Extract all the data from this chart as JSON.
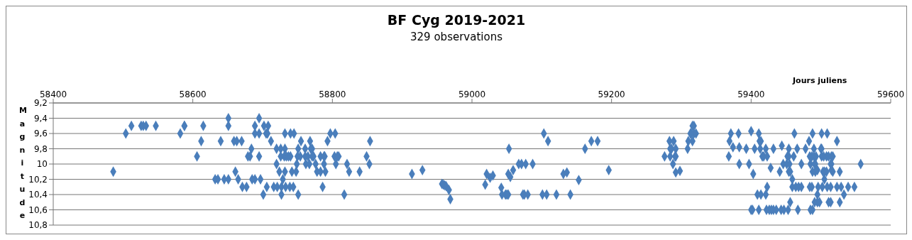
{
  "chart_data": {
    "type": "scatter",
    "title": "BF Cyg 2019-2021",
    "subtitle": "329 observations",
    "xlabel": "Jours juliens",
    "ylabel": "Magnitude",
    "xlim": [
      58400,
      59600
    ],
    "xticks": [
      58400,
      58600,
      58800,
      59000,
      59200,
      59400,
      59600
    ],
    "ylim": [
      10.8,
      9.2
    ],
    "yticks": [
      {
        "value": 9.2,
        "label": "9,2"
      },
      {
        "value": 9.4,
        "label": "9,4"
      },
      {
        "value": 9.6,
        "label": "9,6"
      },
      {
        "value": 9.8,
        "label": "9,8"
      },
      10,
      {
        "value": 10.2,
        "label": "10,2"
      },
      {
        "value": 10.4,
        "label": "10,4"
      },
      {
        "value": 10.6,
        "label": "10,6"
      },
      {
        "value": 10.8,
        "label": "10,8"
      }
    ],
    "grid": "y",
    "marker": "diamond",
    "legend": false,
    "series": [
      {
        "color": "#4a7ebb",
        "x": [
          58486,
          58504,
          58512,
          58526,
          58529,
          58533,
          58547,
          58582,
          58588,
          58588,
          58606,
          58612,
          58615,
          58632,
          58636,
          58640,
          58645,
          58651,
          58651,
          58651,
          58659,
          58663,
          58670,
          58661,
          58665,
          58671,
          58677,
          58684,
          58679,
          58682,
          58685,
          58689,
          58689,
          58689,
          58695,
          58695,
          58695,
          58697,
          58702,
          58708,
          58705,
          58707,
          58732,
          58740,
          58745,
          58797,
          58804,
          58712,
          58755,
          58768,
          58793,
          58854,
          58720,
          58726,
          58732,
          58751,
          58761,
          58769,
          58771,
          58726,
          58731,
          58734,
          58737,
          58740,
          58750,
          58754,
          58761,
          58765,
          58771,
          58773,
          58783,
          58788,
          58789,
          58803,
          58807,
          58809,
          58849,
          58720,
          58749,
          58762,
          58767,
          58776,
          58788,
          58805,
          58821,
          58853,
          58724,
          58732,
          58742,
          58748,
          58778,
          58783,
          58790,
          58824,
          58839,
          58729,
          58706,
          58716,
          58721,
          58727,
          58733,
          58739,
          58744,
          58786,
          58701,
          58727,
          58751,
          58817,
          58914,
          58929,
          58957,
          58959,
          58961,
          58963,
          58967,
          58969,
          59019,
          59021,
          59026,
          59030,
          59042,
          59043,
          59048,
          59050,
          59052,
          59052,
          59055,
          59059,
          59053,
          59067,
          59071,
          59077,
          59087,
          59073,
          59075,
          59080,
          59101,
          59107,
          59121,
          59141,
          59103,
          59109,
          59131,
          59136,
          59153,
          59162,
          59171,
          59180,
          59196,
          59316,
          59318,
          59313,
          59314,
          59318,
          59321,
          59371,
          59382,
          59283,
          59289,
          59310,
          59316,
          59369,
          59374,
          59383,
          59284,
          59286,
          59292,
          59309,
          59393,
          59276,
          59284,
          59291,
          59292,
          59368,
          59288,
          59383,
          59292,
          59298,
          59400,
          59411,
          59462,
          59488,
          59501,
          59509,
          59412,
          59414,
          59483,
          59523,
          59444,
          59405,
          59413,
          59421,
          59432,
          59454,
          59466,
          59478,
          59490,
          59500,
          59501,
          59416,
          59418,
          59423,
          59452,
          59454,
          59461,
          59484,
          59487,
          59490,
          59493,
          59501,
          59504,
          59508,
          59511,
          59515,
          59517,
          59397,
          59446,
          59451,
          59455,
          59472,
          59485,
          59491,
          59492,
          59514,
          59515,
          59557,
          59428,
          59403,
          59441,
          59454,
          59456,
          59488,
          59492,
          59503,
          59505,
          59508,
          59517,
          59527,
          59495,
          59515,
          59459,
          59505,
          59423,
          59459,
          59464,
          59468,
          59472,
          59484,
          59487,
          59496,
          59502,
          59509,
          59514,
          59523,
          59529,
          59539,
          59548,
          59409,
          59414,
          59421,
          59495,
          59533,
          59456,
          59491,
          59495,
          59498,
          59511,
          59514,
          59527,
          59400,
          59402,
          59411,
          59422,
          59426,
          59429,
          59432,
          59436,
          59443,
          59447,
          59453,
          59467,
          59485,
          59488
        ],
        "values": [
          10.1,
          9.6,
          9.5,
          9.5,
          9.5,
          9.5,
          9.5,
          9.6,
          9.5,
          9.5,
          9.9,
          9.7,
          9.5,
          10.2,
          10.2,
          9.7,
          10.2,
          10.2,
          9.4,
          9.5,
          9.7,
          9.7,
          9.7,
          10.1,
          10.2,
          10.3,
          10.3,
          9.8,
          9.9,
          9.9,
          10.2,
          10.2,
          9.5,
          9.6,
          9.4,
          9.9,
          9.6,
          10.2,
          9.5,
          9.5,
          9.6,
          9.6,
          9.6,
          9.6,
          9.6,
          9.6,
          9.6,
          9.7,
          9.7,
          9.7,
          9.7,
          9.7,
          9.8,
          9.8,
          9.8,
          9.8,
          9.8,
          9.8,
          9.8,
          9.9,
          9.9,
          9.9,
          9.9,
          9.9,
          9.9,
          9.9,
          9.9,
          9.9,
          9.9,
          9.9,
          9.9,
          9.9,
          9.9,
          9.9,
          9.9,
          9.9,
          9.9,
          10,
          10,
          10,
          10,
          10,
          10,
          10,
          10,
          10,
          10.1,
          10.1,
          10.1,
          10.1,
          10.1,
          10.1,
          10.1,
          10.1,
          10.1,
          10.2,
          10.3,
          10.3,
          10.3,
          10.3,
          10.3,
          10.3,
          10.3,
          10.3,
          10.4,
          10.4,
          10.4,
          10.4,
          10.13,
          10.08,
          10.26,
          10.27,
          10.28,
          10.29,
          10.34,
          10.46,
          10.27,
          10.13,
          10.18,
          10.15,
          10.31,
          10.4,
          10.4,
          10.4,
          10.4,
          10.13,
          10.17,
          10.08,
          9.8,
          10,
          10,
          10,
          10,
          10.4,
          10.4,
          10.4,
          10.4,
          10.4,
          10.4,
          10.4,
          9.6,
          9.7,
          10.13,
          10.11,
          10.21,
          9.8,
          9.7,
          9.7,
          10.08,
          9.5,
          9.5,
          9.6,
          9.6,
          9.6,
          9.6,
          9.6,
          9.6,
          9.7,
          9.7,
          9.7,
          9.7,
          9.7,
          9.78,
          9.78,
          9.8,
          9.8,
          9.8,
          9.8,
          9.8,
          9.9,
          9.9,
          9.9,
          9.9,
          9.9,
          10,
          10,
          10.11,
          10.09,
          9.57,
          9.6,
          9.6,
          9.6,
          9.6,
          9.6,
          9.7,
          9.7,
          9.7,
          9.7,
          9.76,
          9.8,
          9.8,
          9.8,
          9.8,
          9.8,
          9.8,
          9.8,
          9.8,
          9.8,
          9.8,
          9.9,
          9.9,
          9.9,
          9.9,
          9.9,
          9.9,
          9.9,
          9.9,
          9.9,
          9.9,
          9.9,
          9.9,
          9.9,
          9.9,
          9.9,
          9.9,
          10,
          10,
          10,
          10,
          10,
          10,
          10,
          10,
          10,
          10,
          10,
          10.05,
          10.13,
          10.1,
          10.1,
          10.1,
          10.1,
          10.1,
          10.1,
          10.1,
          10.1,
          10.1,
          10.1,
          10.08,
          10.08,
          10.2,
          10.2,
          10.3,
          10.3,
          10.3,
          10.3,
          10.3,
          10.3,
          10.3,
          10.3,
          10.3,
          10.3,
          10.3,
          10.3,
          10.3,
          10.3,
          10.3,
          10.4,
          10.4,
          10.4,
          10.4,
          10.4,
          10.5,
          10.5,
          10.5,
          10.5,
          10.5,
          10.5,
          10.5,
          10.6,
          10.6,
          10.6,
          10.6,
          10.6,
          10.6,
          10.6,
          10.6,
          10.6,
          10.6,
          10.6,
          10.6,
          10.6,
          10.6
        ]
      }
    ]
  }
}
